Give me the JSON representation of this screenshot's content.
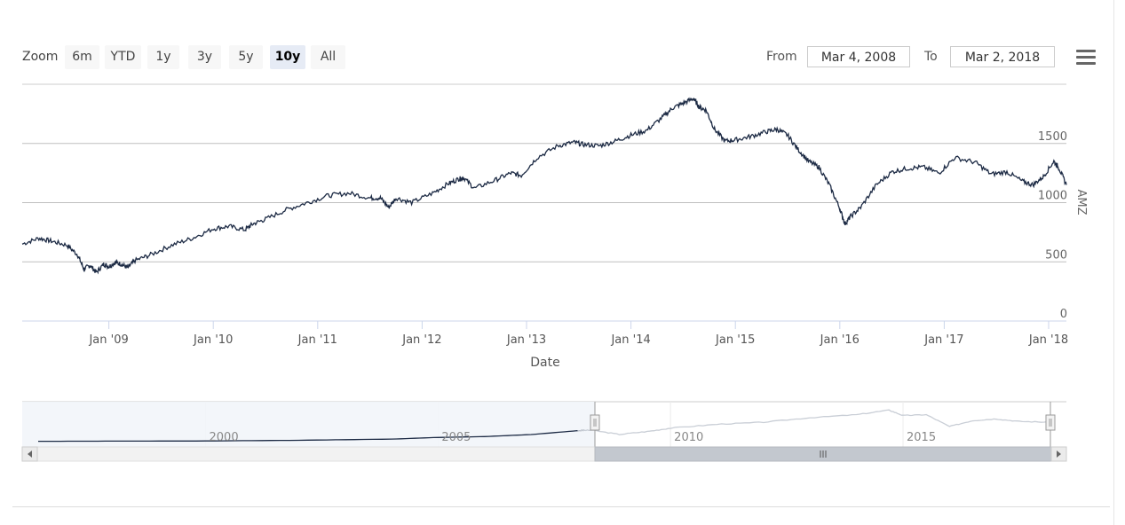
{
  "zoom": {
    "label": "Zoom",
    "buttons": [
      "6m",
      "YTD",
      "1y",
      "3y",
      "5y",
      "10y",
      "All"
    ],
    "active": "10y"
  },
  "range": {
    "from_label": "From",
    "from_value": "Mar 4, 2008",
    "to_label": "To",
    "to_value": "Mar 2, 2018"
  },
  "chart_data": {
    "type": "line",
    "series": [
      {
        "name": "AMZ",
        "x": [
          2008.17,
          2008.33,
          2008.45,
          2008.6,
          2008.7,
          2008.76,
          2008.82,
          2008.88,
          2008.95,
          2009.0,
          2009.06,
          2009.12,
          2009.18,
          2009.25,
          2009.4,
          2009.6,
          2009.8,
          2010.0,
          2010.15,
          2010.3,
          2010.38,
          2010.5,
          2010.7,
          2010.9,
          2011.1,
          2011.3,
          2011.5,
          2011.6,
          2011.68,
          2011.75,
          2011.9,
          2012.1,
          2012.25,
          2012.35,
          2012.4,
          2012.5,
          2012.7,
          2012.85,
          2012.95,
          2013.1,
          2013.3,
          2013.45,
          2013.55,
          2013.7,
          2013.85,
          2014.0,
          2014.15,
          2014.3,
          2014.4,
          2014.5,
          2014.6,
          2014.65,
          2014.72,
          2014.8,
          2014.9,
          2015.0,
          2015.15,
          2015.3,
          2015.4,
          2015.5,
          2015.6,
          2015.7,
          2015.8,
          2015.9,
          2016.0,
          2016.05,
          2016.1,
          2016.2,
          2016.35,
          2016.5,
          2016.65,
          2016.8,
          2016.95,
          2017.1,
          2017.3,
          2017.45,
          2017.6,
          2017.75,
          2017.85,
          2017.95,
          2018.05,
          2018.1,
          2018.17
        ],
        "values": [
          650,
          700,
          675,
          640,
          560,
          440,
          470,
          410,
          480,
          460,
          495,
          480,
          450,
          510,
          560,
          640,
          700,
          780,
          800,
          770,
          820,
          860,
          940,
          1000,
          1060,
          1080,
          1040,
          1040,
          960,
          1040,
          1000,
          1080,
          1160,
          1200,
          1210,
          1120,
          1190,
          1250,
          1230,
          1380,
          1480,
          1510,
          1490,
          1480,
          1520,
          1570,
          1610,
          1720,
          1800,
          1840,
          1880,
          1810,
          1780,
          1620,
          1520,
          1530,
          1560,
          1600,
          1620,
          1570,
          1450,
          1350,
          1300,
          1150,
          950,
          820,
          880,
          960,
          1150,
          1260,
          1290,
          1300,
          1250,
          1380,
          1340,
          1240,
          1260,
          1180,
          1150,
          1220,
          1350,
          1290,
          1150
        ]
      }
    ],
    "xticks": [
      "Jan '09",
      "Jan '10",
      "Jan '11",
      "Jan '12",
      "Jan '13",
      "Jan '14",
      "Jan '15",
      "Jan '16",
      "Jan '17",
      "Jan '18"
    ],
    "xtick_values": [
      2009,
      2010,
      2011,
      2012,
      2013,
      2014,
      2015,
      2016,
      2017,
      2018
    ],
    "yticks": [
      0,
      500,
      1000,
      1500
    ],
    "xlim": [
      2008.17,
      2018.17
    ],
    "ylim": [
      0,
      2000
    ],
    "xlabel": "Date",
    "ylabel": "AMZ",
    "title": "",
    "navigator": {
      "labels": [
        "2000",
        "2005",
        "2010",
        "2015"
      ],
      "label_values": [
        2000,
        2005,
        2010,
        2015
      ],
      "xlim": [
        1996.4,
        2018.17
      ],
      "x": [
        1996.4,
        1998,
        2000,
        2002,
        2004,
        2005,
        2006,
        2007,
        2008.0,
        2008.3,
        2008.9,
        2009.5,
        2010,
        2011,
        2012,
        2013,
        2014,
        2014.7,
        2015,
        2015.5,
        2016.0,
        2016.5,
        2017,
        2017.5,
        2018.17
      ],
      "values": [
        20,
        30,
        40,
        80,
        150,
        250,
        300,
        420,
        650,
        680,
        430,
        600,
        800,
        1030,
        1150,
        1420,
        1600,
        1870,
        1550,
        1600,
        900,
        1250,
        1350,
        1200,
        1150
      ]
    }
  }
}
